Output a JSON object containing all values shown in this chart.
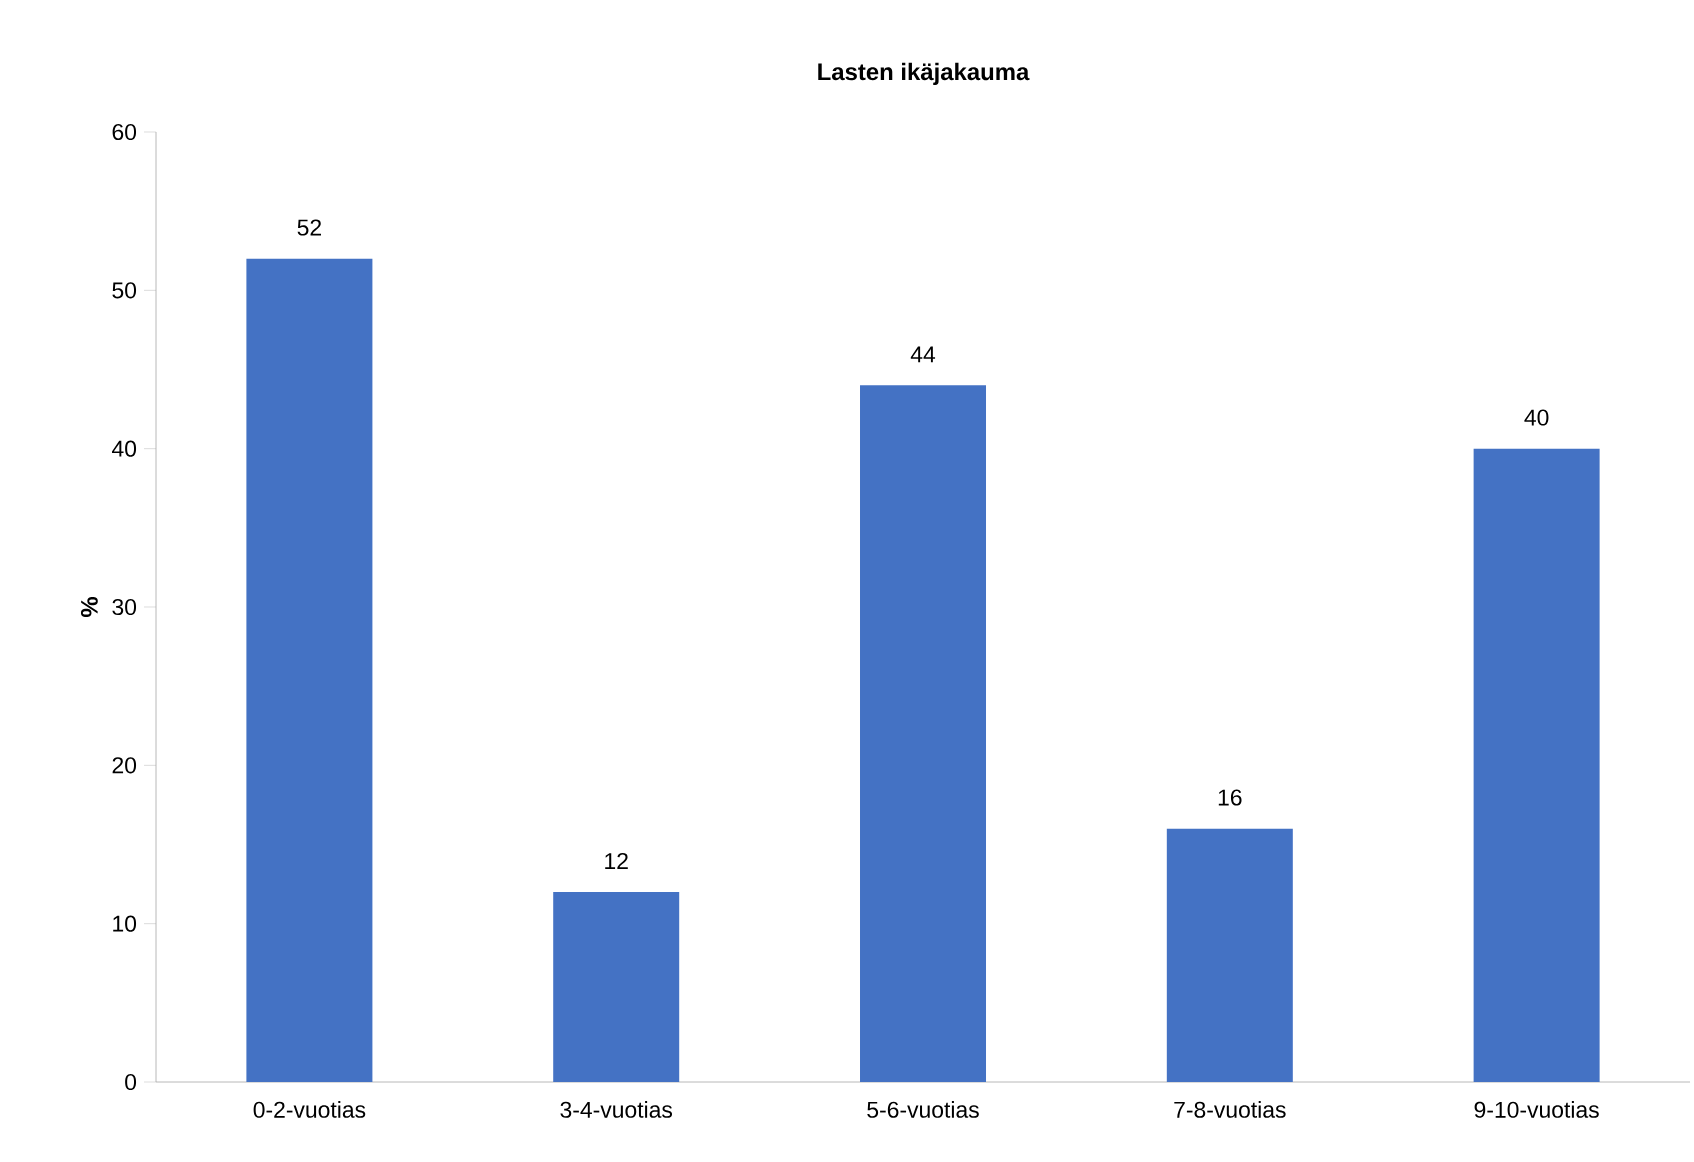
{
  "chart_data": {
    "type": "bar",
    "title": "Lasten ikäjakauma",
    "ylabel": "%",
    "categories": [
      "0-2-vuotias",
      "3-4-vuotias",
      "5-6-vuotias",
      "7-8-vuotias",
      "9-10-vuotias"
    ],
    "values": [
      52,
      12,
      44,
      16,
      40
    ],
    "color": "#4472c4",
    "ylim": [
      0,
      60
    ],
    "yticks": [
      0,
      10,
      20,
      30,
      40,
      50,
      60
    ],
    "data_labels": true
  }
}
